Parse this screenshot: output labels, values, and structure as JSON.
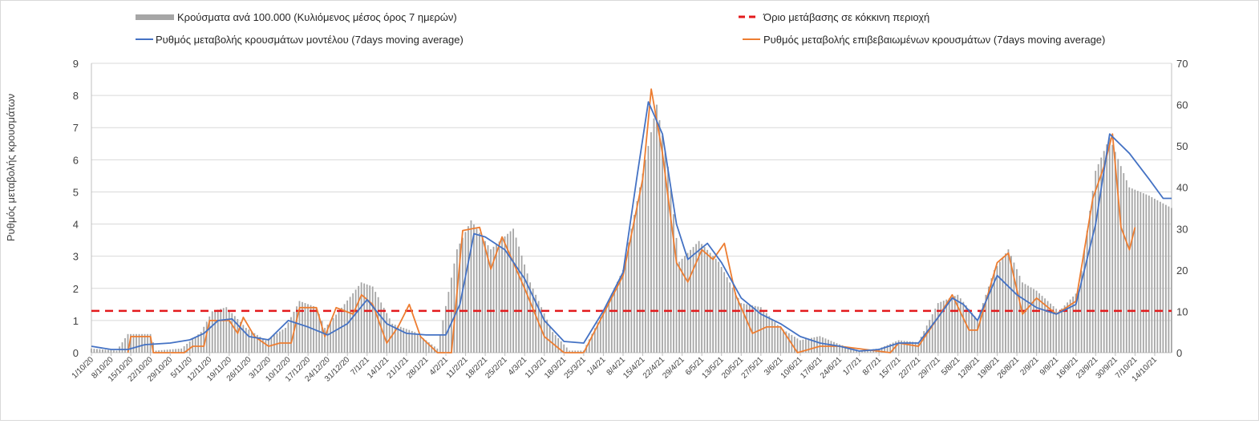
{
  "chart_data": {
    "type": "bar-line-combo",
    "legend_position": "top",
    "grid": true,
    "ylabel_left": "Ρυθμός μεταβολής κρουσμάτων",
    "ylabel_right": "",
    "y_left": {
      "min": 0,
      "max": 9,
      "ticks": [
        "0",
        "1",
        "2",
        "3",
        "4",
        "5",
        "6",
        "7",
        "8",
        "9"
      ]
    },
    "y_right": {
      "min": 0,
      "max": 70,
      "ticks": [
        "0",
        "10",
        "20",
        "30",
        "40",
        "50",
        "60",
        "70"
      ]
    },
    "x_range": [
      "2020-10-01",
      "2021-10-20"
    ],
    "x_ticks": [
      "1/10/20",
      "8/10/20",
      "15/10/20",
      "22/10/20",
      "29/10/20",
      "5/11/20",
      "12/11/20",
      "19/11/20",
      "26/11/20",
      "3/12/20",
      "10/12/20",
      "17/12/20",
      "24/12/20",
      "31/12/20",
      "7/1/21",
      "14/1/21",
      "21/1/21",
      "28/1/21",
      "4/2/21",
      "11/2/21",
      "18/2/21",
      "25/2/21",
      "4/3/21",
      "11/3/21",
      "18/3/21",
      "25/3/21",
      "1/4/21",
      "8/4/21",
      "15/4/21",
      "22/4/21",
      "29/4/21",
      "6/5/21",
      "13/5/21",
      "20/5/21",
      "27/5/21",
      "3/6/21",
      "10/6/21",
      "17/6/21",
      "24/6/21",
      "1/7/21",
      "8/7/21",
      "15/7/21",
      "22/7/21",
      "29/7/21",
      "5/8/21",
      "12/8/21",
      "19/8/21",
      "26/8/21",
      "2/9/21",
      "9/9/21",
      "16/9/21",
      "23/9/21",
      "30/9/21",
      "7/10/21",
      "14/10/21"
    ],
    "series": [
      {
        "name": "Κρούσματα ανά 100.000 (Κυλιόμενος μέσος όρος 7 ημερών)",
        "kind": "bar",
        "axis": "right",
        "color": "#a6a6a6",
        "points": [
          [
            "2020-10-01",
            1
          ],
          [
            "2020-10-10",
            0.5
          ],
          [
            "2020-10-14",
            4.5
          ],
          [
            "2020-10-22",
            4.5
          ],
          [
            "2020-10-24",
            0.5
          ],
          [
            "2020-11-02",
            1
          ],
          [
            "2020-11-09",
            5
          ],
          [
            "2020-11-13",
            10
          ],
          [
            "2020-11-18",
            11
          ],
          [
            "2020-11-25",
            6
          ],
          [
            "2020-12-02",
            3
          ],
          [
            "2020-12-09",
            6
          ],
          [
            "2020-12-14",
            12.5
          ],
          [
            "2020-12-20",
            11
          ],
          [
            "2020-12-23",
            6
          ],
          [
            "2020-12-28",
            10
          ],
          [
            "2021-01-05",
            17
          ],
          [
            "2021-01-09",
            16
          ],
          [
            "2021-01-16",
            7
          ],
          [
            "2021-01-24",
            5
          ],
          [
            "2021-02-01",
            1
          ],
          [
            "2021-02-08",
            25
          ],
          [
            "2021-02-13",
            32
          ],
          [
            "2021-02-20",
            25
          ],
          [
            "2021-02-28",
            30
          ],
          [
            "2021-03-06",
            17
          ],
          [
            "2021-03-14",
            5
          ],
          [
            "2021-03-20",
            0.5
          ],
          [
            "2021-03-25",
            0.5
          ],
          [
            "2021-04-01",
            10
          ],
          [
            "2021-04-08",
            20
          ],
          [
            "2021-04-14",
            40
          ],
          [
            "2021-04-20",
            60
          ],
          [
            "2021-04-24",
            45
          ],
          [
            "2021-04-28",
            22
          ],
          [
            "2021-05-05",
            27
          ],
          [
            "2021-05-12",
            22
          ],
          [
            "2021-05-20",
            12
          ],
          [
            "2021-05-27",
            11
          ],
          [
            "2021-06-03",
            6
          ],
          [
            "2021-06-10",
            3
          ],
          [
            "2021-06-17",
            4
          ],
          [
            "2021-06-24",
            2
          ],
          [
            "2021-07-01",
            0.5
          ],
          [
            "2021-07-08",
            1
          ],
          [
            "2021-07-15",
            3
          ],
          [
            "2021-07-22",
            2.5
          ],
          [
            "2021-07-29",
            12
          ],
          [
            "2021-08-05",
            14
          ],
          [
            "2021-08-12",
            8
          ],
          [
            "2021-08-18",
            20
          ],
          [
            "2021-08-23",
            25
          ],
          [
            "2021-08-28",
            17
          ],
          [
            "2021-09-02",
            15
          ],
          [
            "2021-09-10",
            10
          ],
          [
            "2021-09-17",
            15
          ],
          [
            "2021-09-23",
            44
          ],
          [
            "2021-09-28",
            52
          ],
          [
            "2021-10-05",
            40
          ],
          [
            "2021-10-12",
            38
          ],
          [
            "2021-10-20",
            35
          ]
        ]
      },
      {
        "name": "Όριο μετάβασης σε κόκκινη περιοχή",
        "kind": "dashed-line",
        "axis": "left",
        "color": "#e31a1c",
        "value": 1.3
      },
      {
        "name": "Ρυθμός μεταβολής κρουσμάτων μοντέλου (7days moving average)",
        "kind": "line",
        "axis": "left",
        "color": "#4472c4",
        "points": [
          [
            "2020-10-01",
            0.2
          ],
          [
            "2020-10-08",
            0.1
          ],
          [
            "2020-10-14",
            0.1
          ],
          [
            "2020-10-20",
            0.25
          ],
          [
            "2020-10-29",
            0.3
          ],
          [
            "2020-11-05",
            0.4
          ],
          [
            "2020-11-10",
            0.6
          ],
          [
            "2020-11-15",
            1.0
          ],
          [
            "2020-11-20",
            1.05
          ],
          [
            "2020-11-26",
            0.5
          ],
          [
            "2020-12-03",
            0.4
          ],
          [
            "2020-12-10",
            1.0
          ],
          [
            "2020-12-17",
            0.8
          ],
          [
            "2020-12-24",
            0.55
          ],
          [
            "2020-12-31",
            0.9
          ],
          [
            "2021-01-07",
            1.65
          ],
          [
            "2021-01-14",
            0.9
          ],
          [
            "2021-01-21",
            0.6
          ],
          [
            "2021-01-28",
            0.55
          ],
          [
            "2021-02-04",
            0.55
          ],
          [
            "2021-02-09",
            1.5
          ],
          [
            "2021-02-14",
            3.7
          ],
          [
            "2021-02-18",
            3.6
          ],
          [
            "2021-02-25",
            3.2
          ],
          [
            "2021-03-04",
            2.3
          ],
          [
            "2021-03-11",
            1.0
          ],
          [
            "2021-03-18",
            0.35
          ],
          [
            "2021-03-25",
            0.3
          ],
          [
            "2021-04-01",
            1.3
          ],
          [
            "2021-04-08",
            2.5
          ],
          [
            "2021-04-13",
            5.5
          ],
          [
            "2021-04-17",
            7.8
          ],
          [
            "2021-04-22",
            6.8
          ],
          [
            "2021-04-27",
            4.0
          ],
          [
            "2021-05-01",
            2.9
          ],
          [
            "2021-05-08",
            3.4
          ],
          [
            "2021-05-13",
            2.8
          ],
          [
            "2021-05-20",
            1.7
          ],
          [
            "2021-05-27",
            1.2
          ],
          [
            "2021-06-03",
            0.9
          ],
          [
            "2021-06-10",
            0.5
          ],
          [
            "2021-06-17",
            0.3
          ],
          [
            "2021-06-24",
            0.2
          ],
          [
            "2021-07-01",
            0.05
          ],
          [
            "2021-07-08",
            0.1
          ],
          [
            "2021-07-15",
            0.3
          ],
          [
            "2021-07-22",
            0.3
          ],
          [
            "2021-07-29",
            1.1
          ],
          [
            "2021-08-03",
            1.7
          ],
          [
            "2021-08-07",
            1.5
          ],
          [
            "2021-08-12",
            1.0
          ],
          [
            "2021-08-19",
            2.4
          ],
          [
            "2021-08-26",
            1.8
          ],
          [
            "2021-09-02",
            1.4
          ],
          [
            "2021-09-09",
            1.2
          ],
          [
            "2021-09-16",
            1.5
          ],
          [
            "2021-09-23",
            4.0
          ],
          [
            "2021-09-28",
            6.8
          ],
          [
            "2021-10-05",
            6.2
          ],
          [
            "2021-10-12",
            5.4
          ],
          [
            "2021-10-17",
            4.8
          ],
          [
            "2021-10-20",
            4.8
          ]
        ]
      },
      {
        "name": "Ρυθμός μεταβολής επιβεβαιωμένων κρουσμάτων (7days moving average)",
        "kind": "line",
        "axis": "left",
        "color": "#ed7d31",
        "points": [
          [
            "2020-10-14",
            0.0
          ],
          [
            "2020-10-15",
            0.5
          ],
          [
            "2020-10-22",
            0.5
          ],
          [
            "2020-10-23",
            0.0
          ],
          [
            "2020-11-03",
            0.0
          ],
          [
            "2020-11-06",
            0.2
          ],
          [
            "2020-11-10",
            0.2
          ],
          [
            "2020-11-12",
            1.0
          ],
          [
            "2020-11-19",
            1.0
          ],
          [
            "2020-11-22",
            0.6
          ],
          [
            "2020-11-24",
            1.1
          ],
          [
            "2020-11-28",
            0.5
          ],
          [
            "2020-12-03",
            0.2
          ],
          [
            "2020-12-07",
            0.3
          ],
          [
            "2020-12-11",
            0.3
          ],
          [
            "2020-12-14",
            1.4
          ],
          [
            "2020-12-20",
            1.4
          ],
          [
            "2020-12-23",
            0.5
          ],
          [
            "2020-12-27",
            1.4
          ],
          [
            "2021-01-02",
            1.2
          ],
          [
            "2021-01-05",
            1.8
          ],
          [
            "2021-01-09",
            1.5
          ],
          [
            "2021-01-14",
            0.3
          ],
          [
            "2021-01-18",
            0.8
          ],
          [
            "2021-01-22",
            1.5
          ],
          [
            "2021-01-26",
            0.5
          ],
          [
            "2021-02-01",
            0.0
          ],
          [
            "2021-02-06",
            0.0
          ],
          [
            "2021-02-10",
            3.8
          ],
          [
            "2021-02-16",
            3.9
          ],
          [
            "2021-02-20",
            2.6
          ],
          [
            "2021-02-24",
            3.6
          ],
          [
            "2021-03-04",
            2.0
          ],
          [
            "2021-03-11",
            0.5
          ],
          [
            "2021-03-18",
            0.0
          ],
          [
            "2021-03-25",
            0.0
          ],
          [
            "2021-04-01",
            1.2
          ],
          [
            "2021-04-08",
            2.4
          ],
          [
            "2021-04-15",
            5.4
          ],
          [
            "2021-04-18",
            8.2
          ],
          [
            "2021-04-22",
            6.2
          ],
          [
            "2021-04-27",
            2.8
          ],
          [
            "2021-05-01",
            2.2
          ],
          [
            "2021-05-06",
            3.2
          ],
          [
            "2021-05-10",
            2.9
          ],
          [
            "2021-05-14",
            3.4
          ],
          [
            "2021-05-18",
            1.8
          ],
          [
            "2021-05-24",
            0.6
          ],
          [
            "2021-05-29",
            0.8
          ],
          [
            "2021-06-03",
            0.8
          ],
          [
            "2021-06-09",
            0.0
          ],
          [
            "2021-06-17",
            0.2
          ],
          [
            "2021-06-24",
            0.2
          ],
          [
            "2021-07-12",
            0.0
          ],
          [
            "2021-07-15",
            0.3
          ],
          [
            "2021-07-22",
            0.2
          ],
          [
            "2021-07-29",
            1.1
          ],
          [
            "2021-08-03",
            1.8
          ],
          [
            "2021-08-09",
            0.7
          ],
          [
            "2021-08-12",
            0.7
          ],
          [
            "2021-08-19",
            2.8
          ],
          [
            "2021-08-23",
            3.1
          ],
          [
            "2021-08-28",
            1.2
          ],
          [
            "2021-09-02",
            1.7
          ],
          [
            "2021-09-09",
            1.2
          ],
          [
            "2021-09-16",
            1.6
          ],
          [
            "2021-09-22",
            4.8
          ],
          [
            "2021-09-26",
            5.8
          ],
          [
            "2021-09-29",
            6.8
          ],
          [
            "2021-10-02",
            3.9
          ],
          [
            "2021-10-05",
            3.2
          ],
          [
            "2021-10-07",
            3.9
          ]
        ]
      }
    ]
  }
}
